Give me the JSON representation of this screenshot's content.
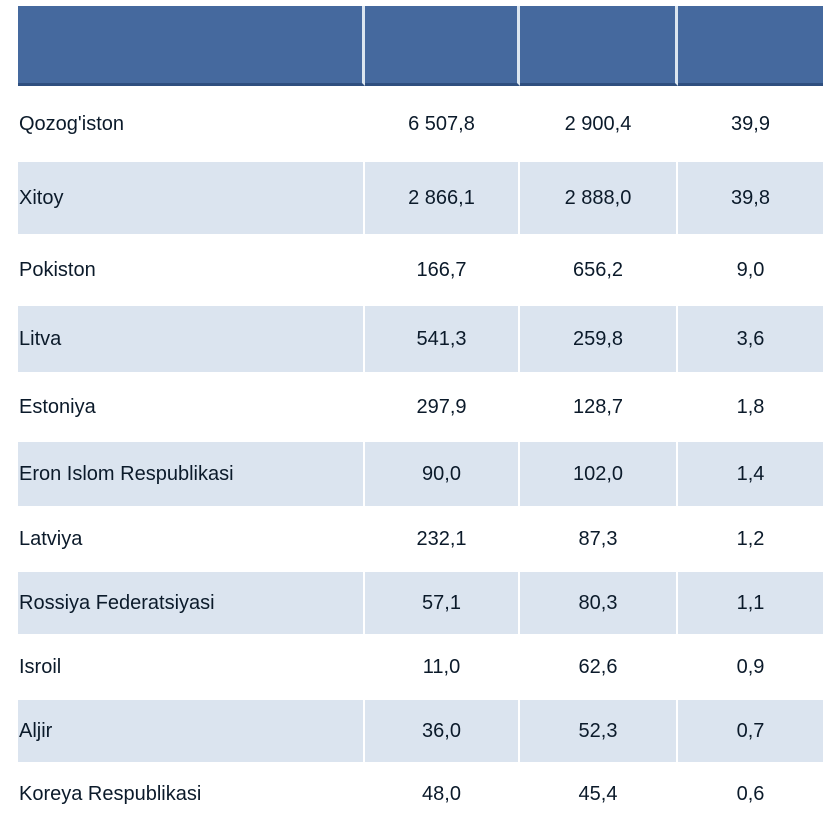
{
  "table": {
    "header": [
      "",
      "",
      "",
      ""
    ],
    "rows": [
      {
        "country": "Qozog'iston",
        "v1": "6 507,8",
        "v2": "2 900,4",
        "share": "39,9"
      },
      {
        "country": "Xitoy",
        "v1": "2 866,1",
        "v2": "2 888,0",
        "share": "39,8"
      },
      {
        "country": "Pokiston",
        "v1": "166,7",
        "v2": "656,2",
        "share": "9,0"
      },
      {
        "country": "Litva",
        "v1": "541,3",
        "v2": "259,8",
        "share": "3,6"
      },
      {
        "country": "Estoniya",
        "v1": "297,9",
        "v2": "128,7",
        "share": "1,8"
      },
      {
        "country": "Eron Islom Respublikasi",
        "v1": "90,0",
        "v2": "102,0",
        "share": "1,4"
      },
      {
        "country": "Latviya",
        "v1": "232,1",
        "v2": "87,3",
        "share": "1,2"
      },
      {
        "country": "Rossiya Federatsiyasi",
        "v1": "57,1",
        "v2": "80,3",
        "share": "1,1"
      },
      {
        "country": "Isroil",
        "v1": "11,0",
        "v2": "62,6",
        "share": "0,9"
      },
      {
        "country": "Aljir",
        "v1": "36,0",
        "v2": "52,3",
        "share": "0,7"
      },
      {
        "country": "Koreya Respublikasi",
        "v1": "48,0",
        "v2": "45,4",
        "share": "0,6"
      }
    ]
  }
}
